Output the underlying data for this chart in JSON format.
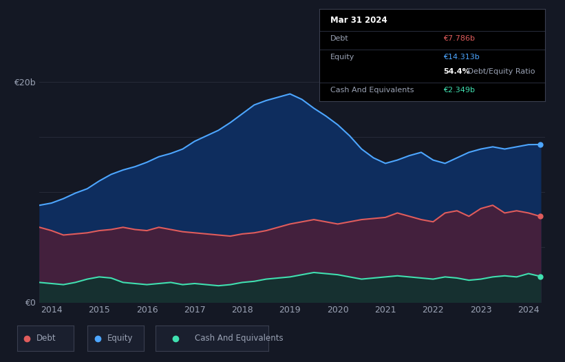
{
  "background_color": "#141824",
  "plot_bg_color": "#141824",
  "title": "Mar 31 2024",
  "tooltip": {
    "debt_label": "Debt",
    "debt_value": "€7.786b",
    "equity_label": "Equity",
    "equity_value": "€14.313b",
    "ratio_text": "54.4% Debt/Equity Ratio",
    "cash_label": "Cash And Equivalents",
    "cash_value": "€2.349b"
  },
  "ylabel_20b": "€20b",
  "ylabel_0": "€0",
  "legend": [
    "Debt",
    "Equity",
    "Cash And Equivalents"
  ],
  "debt_color": "#e05c5c",
  "equity_color": "#4da6ff",
  "cash_color": "#40e0b0",
  "debt_fill_color": "#4a1f3a",
  "equity_fill_color": "#0e2d5e",
  "cash_fill_color": "#163030",
  "grid_color": "#2a2e3d",
  "text_color": "#9ba3b5",
  "years": [
    2013.75,
    2014.0,
    2014.25,
    2014.5,
    2014.75,
    2015.0,
    2015.25,
    2015.5,
    2015.75,
    2016.0,
    2016.25,
    2016.5,
    2016.75,
    2017.0,
    2017.25,
    2017.5,
    2017.75,
    2018.0,
    2018.25,
    2018.5,
    2018.75,
    2019.0,
    2019.25,
    2019.5,
    2019.75,
    2020.0,
    2020.25,
    2020.5,
    2020.75,
    2021.0,
    2021.25,
    2021.5,
    2021.75,
    2022.0,
    2022.25,
    2022.5,
    2022.75,
    2023.0,
    2023.25,
    2023.5,
    2023.75,
    2024.0,
    2024.25
  ],
  "equity": [
    8.8,
    9.0,
    9.4,
    9.9,
    10.3,
    11.0,
    11.6,
    12.0,
    12.3,
    12.7,
    13.2,
    13.5,
    13.9,
    14.6,
    15.1,
    15.6,
    16.3,
    17.1,
    17.9,
    18.3,
    18.6,
    18.9,
    18.4,
    17.6,
    16.9,
    16.1,
    15.1,
    13.9,
    13.1,
    12.6,
    12.9,
    13.3,
    13.6,
    12.9,
    12.6,
    13.1,
    13.6,
    13.9,
    14.1,
    13.9,
    14.1,
    14.3,
    14.313
  ],
  "debt": [
    6.8,
    6.5,
    6.1,
    6.2,
    6.3,
    6.5,
    6.6,
    6.8,
    6.6,
    6.5,
    6.8,
    6.6,
    6.4,
    6.3,
    6.2,
    6.1,
    6.0,
    6.2,
    6.3,
    6.5,
    6.8,
    7.1,
    7.3,
    7.5,
    7.3,
    7.1,
    7.3,
    7.5,
    7.6,
    7.7,
    8.1,
    7.8,
    7.5,
    7.3,
    8.1,
    8.3,
    7.8,
    8.5,
    8.8,
    8.1,
    8.3,
    8.1,
    7.786
  ],
  "cash": [
    1.8,
    1.7,
    1.6,
    1.8,
    2.1,
    2.3,
    2.2,
    1.8,
    1.7,
    1.6,
    1.7,
    1.8,
    1.6,
    1.7,
    1.6,
    1.5,
    1.6,
    1.8,
    1.9,
    2.1,
    2.2,
    2.3,
    2.5,
    2.7,
    2.6,
    2.5,
    2.3,
    2.1,
    2.2,
    2.3,
    2.4,
    2.3,
    2.2,
    2.1,
    2.3,
    2.2,
    2.0,
    2.1,
    2.3,
    2.4,
    2.3,
    2.6,
    2.349
  ]
}
